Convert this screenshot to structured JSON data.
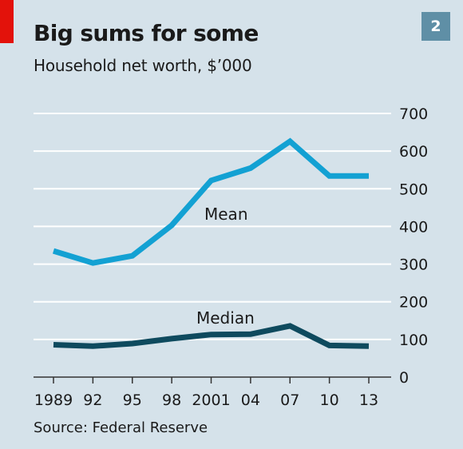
{
  "header": {
    "title": "Big sums for some",
    "subtitle": "Household net worth, $’000",
    "badge": "2"
  },
  "footer": {
    "source": "Source: Federal Reserve"
  },
  "colors": {
    "mean": "#13a1d3",
    "median": "#0e4a5e",
    "grid": "#ffffff",
    "background": "#d5e2ea",
    "accent_red": "#e3120b"
  },
  "chart_data": {
    "type": "line",
    "title": "Big sums for some",
    "subtitle": "Household net worth, $’000",
    "x": [
      "1989",
      "92",
      "95",
      "98",
      "2001",
      "04",
      "07",
      "10",
      "13"
    ],
    "series": [
      {
        "name": "Mean",
        "values": [
          335,
          303,
          322,
          403,
          522,
          555,
          626,
          534,
          534
        ]
      },
      {
        "name": "Median",
        "values": [
          86,
          82,
          89,
          102,
          113,
          114,
          136,
          84,
          82
        ]
      }
    ],
    "ylim": [
      0,
      700
    ],
    "yticks": [
      0,
      100,
      200,
      300,
      400,
      500,
      600,
      700
    ],
    "y_axis_side": "right",
    "grid": true
  }
}
